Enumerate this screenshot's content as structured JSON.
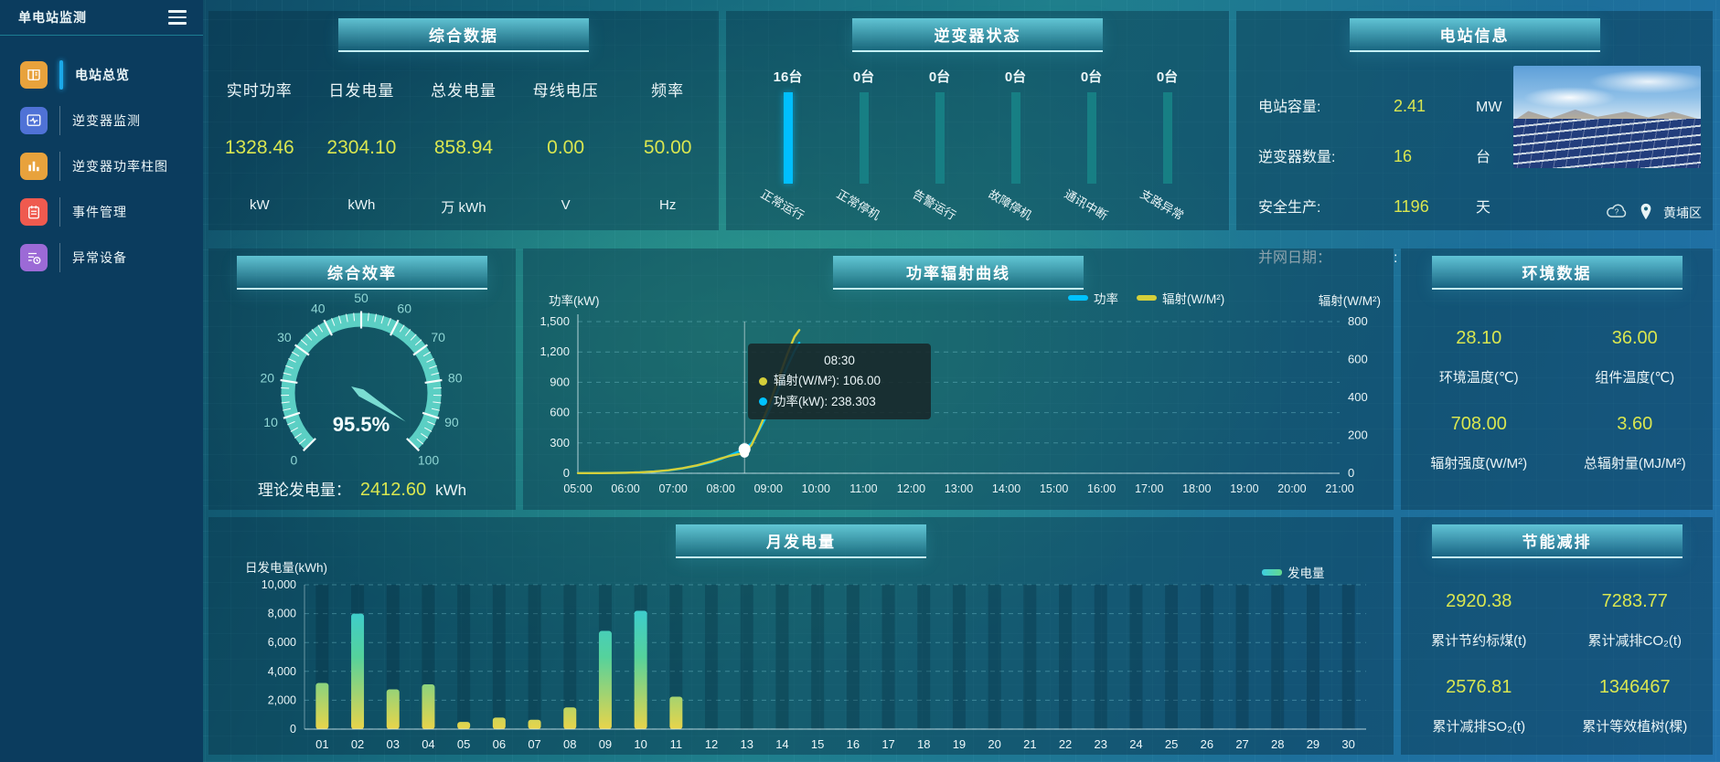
{
  "colors": {
    "accent_yellow": "#d9e650",
    "power_line": "#00c3ff",
    "radiation_line": "#d4cf3a",
    "highlight_bar": "#00bfff",
    "normal_bar": "#177f84"
  },
  "sidebar": {
    "title": "单电站监测",
    "items": [
      {
        "label": "电站总览",
        "icon": "report-icon",
        "color": "#E8A23C",
        "active": true
      },
      {
        "label": "逆变器监测",
        "icon": "pulse-monitor-icon",
        "color": "#4F72D6",
        "active": false
      },
      {
        "label": "逆变器功率柱图",
        "icon": "bar-chart-icon",
        "color": "#E8A23C",
        "active": false
      },
      {
        "label": "事件管理",
        "icon": "notebook-icon",
        "color": "#EF5A4F",
        "active": false
      },
      {
        "label": "异常设备",
        "icon": "device-clock-icon",
        "color": "#9C6AD6",
        "active": false
      }
    ]
  },
  "overview": {
    "title": "综合数据",
    "metrics": [
      {
        "label": "实时功率",
        "value": "1328.46",
        "unit": "kW"
      },
      {
        "label": "日发电量",
        "value": "2304.10",
        "unit": "kWh"
      },
      {
        "label": "总发电量",
        "value": "858.94",
        "unit": "万 kWh"
      },
      {
        "label": "母线电压",
        "value": "0.00",
        "unit": "V"
      },
      {
        "label": "频率",
        "value": "50.00",
        "unit": "Hz"
      }
    ]
  },
  "inverter_status": {
    "title": "逆变器状态",
    "bars": [
      {
        "count": "16台",
        "label": "正常运行",
        "highlight": true
      },
      {
        "count": "0台",
        "label": "正常停机",
        "highlight": false
      },
      {
        "count": "0台",
        "label": "告警运行",
        "highlight": false
      },
      {
        "count": "0台",
        "label": "故障停机",
        "highlight": false
      },
      {
        "count": "0台",
        "label": "通讯中断",
        "highlight": false
      },
      {
        "count": "0台",
        "label": "支路异常",
        "highlight": false
      }
    ]
  },
  "station_info": {
    "title": "电站信息",
    "rows": [
      {
        "label": "电站容量:",
        "value": "2.41",
        "unit": "MW"
      },
      {
        "label": "逆变器数量:",
        "value": "16",
        "unit": "台"
      },
      {
        "label": "安全生产:",
        "value": "1196",
        "unit": "天"
      },
      {
        "label": "并网日期：",
        "value": ":",
        "unit": ""
      }
    ],
    "location": "黄埔区"
  },
  "environment": {
    "title": "环境数据",
    "cells": [
      {
        "value": "28.10",
        "label": "环境温度(℃)"
      },
      {
        "value": "36.00",
        "label": "组件温度(℃)"
      },
      {
        "value": "708.00",
        "label": "辐射强度(W/M²)"
      },
      {
        "value": "3.60",
        "label": "总辐射量(MJ/M²)"
      }
    ]
  },
  "saving": {
    "title": "节能减排",
    "cells": [
      {
        "value": "2920.38",
        "label": "累计节约标煤(t)"
      },
      {
        "value": "7283.77",
        "label": "累计减排CO₂(t)"
      },
      {
        "value": "2576.81",
        "label": "累计减排SO₂(t)"
      },
      {
        "value": "1346467",
        "label": "累计等效植树(棵)"
      }
    ]
  },
  "chart_data": [
    {
      "type": "gauge",
      "title": "综合效率",
      "value": 95.5,
      "display": "95.5%",
      "min": 0,
      "max": 100,
      "tick_labels": [
        "0",
        "10",
        "20",
        "30",
        "40",
        "50",
        "60",
        "70",
        "80",
        "90",
        "100"
      ],
      "footer": {
        "label": "理论发电量：",
        "value": "2412.60",
        "unit": "kWh"
      }
    },
    {
      "type": "bar",
      "title": "逆变器状态",
      "categories": [
        "正常运行",
        "正常停机",
        "告警运行",
        "故障停机",
        "通讯中断",
        "支路异常"
      ],
      "values": [
        16,
        0,
        0,
        0,
        0,
        0
      ],
      "value_labels": [
        "16台",
        "0台",
        "0台",
        "0台",
        "0台",
        "0台"
      ]
    },
    {
      "type": "line",
      "title": "功率辐射曲线",
      "ylabel_left": "功率(kW)",
      "ylabel_right": "辐射(W/M²)",
      "ylim_left": [
        0,
        1500
      ],
      "ylim_right": [
        0,
        800
      ],
      "yticks_left": [
        [
          1500,
          "1,500"
        ],
        [
          1200,
          "1,200"
        ],
        [
          900,
          "900"
        ],
        [
          600,
          "600"
        ],
        [
          300,
          "300"
        ],
        [
          0,
          "0"
        ]
      ],
      "yticks_right": [
        [
          800,
          "800"
        ],
        [
          600,
          "600"
        ],
        [
          400,
          "400"
        ],
        [
          200,
          "200"
        ],
        [
          0,
          "0"
        ]
      ],
      "x": [
        "05:00",
        "06:00",
        "07:00",
        "08:00",
        "09:00",
        "10:00",
        "11:00",
        "12:00",
        "13:00",
        "14:00",
        "15:00",
        "16:00",
        "17:00",
        "18:00",
        "19:00",
        "20:00",
        "21:00"
      ],
      "legend": [
        "功率",
        "辐射(W/M²)"
      ],
      "series": [
        {
          "name": "功率",
          "yaxis": "left",
          "color": "#00c3ff",
          "points": [
            [
              5,
              2
            ],
            [
              5.5,
              3
            ],
            [
              6,
              5
            ],
            [
              6.3,
              9
            ],
            [
              6.6,
              16
            ],
            [
              6.9,
              28
            ],
            [
              7.2,
              48
            ],
            [
              7.5,
              75
            ],
            [
              7.8,
              110
            ],
            [
              8,
              140
            ],
            [
              8.2,
              180
            ],
            [
              8.35,
              210
            ],
            [
              8.5,
              238.3
            ],
            [
              8.65,
              300
            ],
            [
              8.8,
              420
            ],
            [
              9,
              600
            ],
            [
              9.2,
              820
            ],
            [
              9.4,
              1060
            ],
            [
              9.55,
              1210
            ],
            [
              9.65,
              1290
            ]
          ]
        },
        {
          "name": "辐射(W/M²)",
          "yaxis": "right",
          "color": "#d4cf3a",
          "points": [
            [
              5,
              1
            ],
            [
              5.5,
              1
            ],
            [
              6,
              3
            ],
            [
              6.3,
              5
            ],
            [
              6.6,
              9
            ],
            [
              6.9,
              16
            ],
            [
              7.2,
              27
            ],
            [
              7.5,
              42
            ],
            [
              7.8,
              62
            ],
            [
              8,
              78
            ],
            [
              8.2,
              92
            ],
            [
              8.35,
              100
            ],
            [
              8.5,
              106
            ],
            [
              8.65,
              150
            ],
            [
              8.8,
              230
            ],
            [
              9,
              350
            ],
            [
              9.2,
              490
            ],
            [
              9.4,
              630
            ],
            [
              9.55,
              720
            ],
            [
              9.65,
              755
            ]
          ]
        }
      ],
      "tooltip": {
        "time": "08:30",
        "line1": "辐射(W/M²): 106.00",
        "line2": "功率(kW): 238.303",
        "x_hour": 8.5,
        "marker_power": 238.303,
        "marker_radiation": 106
      }
    },
    {
      "type": "bar",
      "title": "月发电量",
      "ylabel": "日发电量(kWh)",
      "legend": "发电量",
      "ylim": [
        0,
        10000
      ],
      "yticks": [
        [
          10000,
          "10,000"
        ],
        [
          8000,
          "8,000"
        ],
        [
          6000,
          "6,000"
        ],
        [
          4000,
          "4,000"
        ],
        [
          2000,
          "2,000"
        ],
        [
          0,
          "0"
        ]
      ],
      "categories": [
        "01",
        "02",
        "03",
        "04",
        "05",
        "06",
        "07",
        "08",
        "09",
        "10",
        "11",
        "12",
        "13",
        "14",
        "15",
        "16",
        "17",
        "18",
        "19",
        "20",
        "21",
        "22",
        "23",
        "24",
        "25",
        "26",
        "27",
        "28",
        "29",
        "30"
      ],
      "values": [
        3200,
        8000,
        2750,
        3100,
        500,
        800,
        650,
        1500,
        6800,
        8200,
        2250,
        0,
        0,
        0,
        0,
        0,
        0,
        0,
        0,
        0,
        0,
        0,
        0,
        0,
        0,
        0,
        0,
        0,
        0,
        0
      ]
    }
  ]
}
